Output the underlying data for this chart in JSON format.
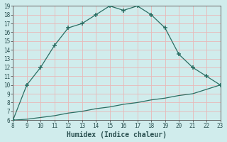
{
  "x_upper": [
    8,
    9,
    10,
    11,
    12,
    13,
    14,
    15,
    16,
    17,
    18,
    19,
    20,
    21,
    22,
    23
  ],
  "y_upper": [
    6,
    10,
    12,
    14.5,
    16.5,
    17,
    18,
    19,
    18.5,
    19,
    18,
    16.5,
    13.5,
    12,
    11,
    10
  ],
  "x_lower": [
    8,
    9,
    10,
    11,
    12,
    13,
    14,
    15,
    16,
    17,
    18,
    19,
    20,
    21,
    22,
    23
  ],
  "y_lower": [
    6,
    6.1,
    6.3,
    6.5,
    6.8,
    7.0,
    7.3,
    7.5,
    7.8,
    8.0,
    8.3,
    8.5,
    8.8,
    9.0,
    9.5,
    10
  ],
  "line_color": "#2a6e63",
  "bg_color": "#d0ecec",
  "grid_color_major": "#e8b8b8",
  "grid_color_minor": "#f0d0d0",
  "xlabel": "Humidex (Indice chaleur)",
  "xlim": [
    8,
    23
  ],
  "ylim": [
    6,
    19
  ],
  "xticks": [
    8,
    9,
    10,
    11,
    12,
    13,
    14,
    15,
    16,
    17,
    18,
    19,
    20,
    21,
    22,
    23
  ],
  "yticks": [
    6,
    7,
    8,
    9,
    10,
    11,
    12,
    13,
    14,
    15,
    16,
    17,
    18,
    19
  ],
  "tick_fontsize": 5.5,
  "xlabel_fontsize": 7.0,
  "line_width": 0.9,
  "marker": "+",
  "marker_size": 4,
  "marker_edge_width": 1.1
}
